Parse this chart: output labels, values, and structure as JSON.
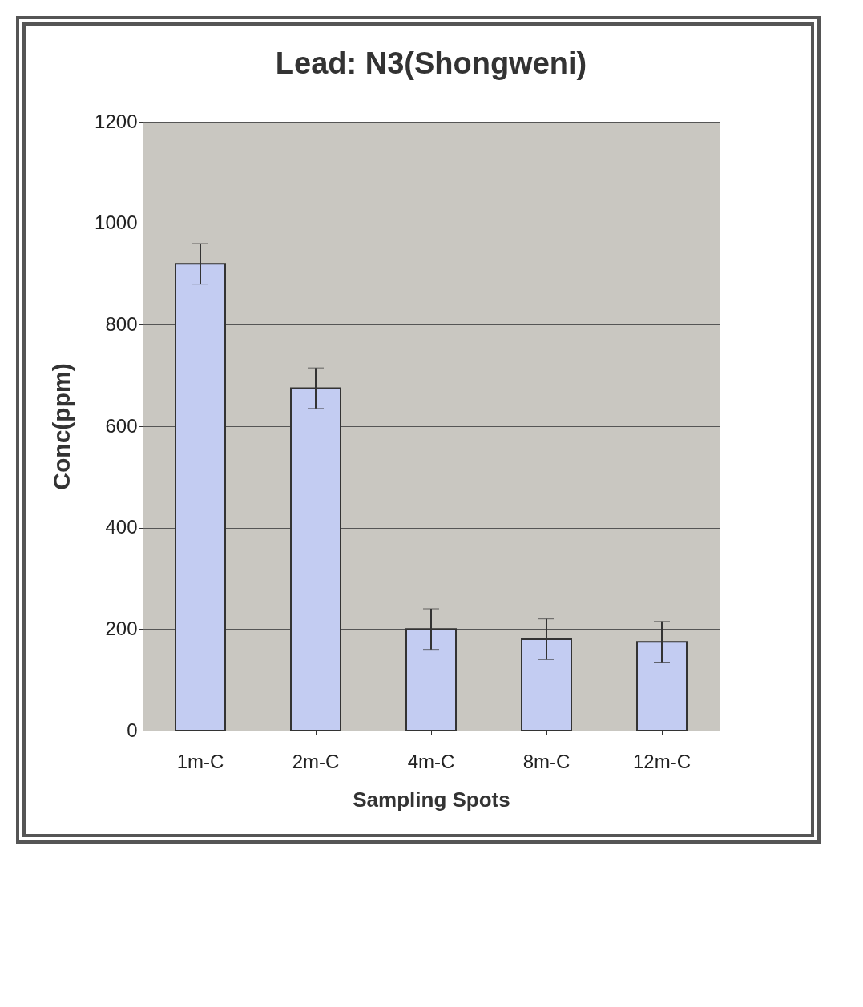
{
  "chart_data": {
    "type": "bar",
    "title": "Lead: N3(Shongweni)",
    "xlabel": "Sampling Spots",
    "ylabel": "Conc(ppm)",
    "categories": [
      "1m-C",
      "2m-C",
      "4m-C",
      "8m-C",
      "12m-C"
    ],
    "values": [
      920,
      675,
      200,
      180,
      175
    ],
    "errors": [
      40,
      40,
      40,
      40,
      40
    ],
    "color": "#c3ccf2",
    "ylim": [
      0,
      1200
    ],
    "yticks": [
      0,
      200,
      400,
      600,
      800,
      1000,
      1200
    ],
    "grid": "y"
  }
}
